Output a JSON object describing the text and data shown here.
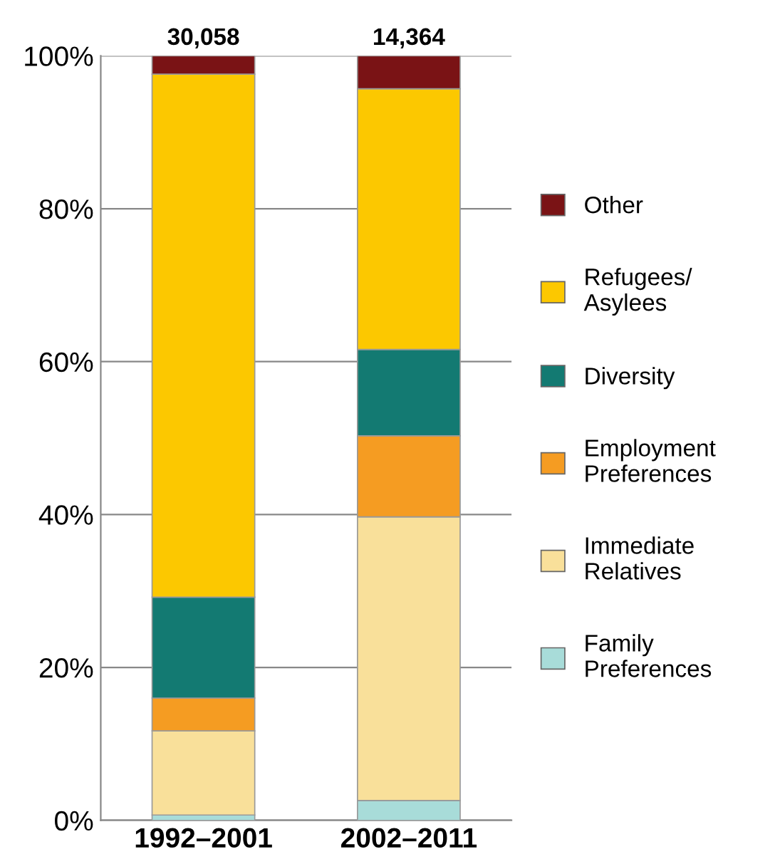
{
  "chart_data": {
    "type": "bar",
    "stacked": true,
    "categories": [
      "1992–2001",
      "2002–2011"
    ],
    "series": [
      {
        "name": "Family\nPreferences",
        "color": "#a8dcd9",
        "values": [
          0.7,
          2.6
        ]
      },
      {
        "name": "Immediate\nRelatives",
        "color": "#f9e09a",
        "values": [
          11.0,
          37.1
        ]
      },
      {
        "name": "Employment\nPreferences",
        "color": "#f59c22",
        "values": [
          4.3,
          10.6
        ]
      },
      {
        "name": "Diversity",
        "color": "#137a72",
        "values": [
          13.2,
          11.3
        ]
      },
      {
        "name": "Refugees/\nAsylees",
        "color": "#fcc800",
        "values": [
          68.4,
          34.1
        ]
      },
      {
        "name": "Other",
        "color": "#7a1315",
        "values": [
          2.4,
          4.3
        ]
      }
    ],
    "annotations": [
      {
        "text": "30,058",
        "x": "1992–2001",
        "y": 100
      },
      {
        "text": "14,364",
        "x": "2002–2011",
        "y": 100
      }
    ],
    "ylim": [
      0,
      100
    ],
    "yticks": [
      {
        "value": 0,
        "label": "0%"
      },
      {
        "value": 20,
        "label": "20%"
      },
      {
        "value": 40,
        "label": "40%"
      },
      {
        "value": 60,
        "label": "60%"
      },
      {
        "value": 80,
        "label": "80%"
      },
      {
        "value": 100,
        "label": "100%"
      }
    ],
    "grid": "y",
    "legend": "right"
  }
}
